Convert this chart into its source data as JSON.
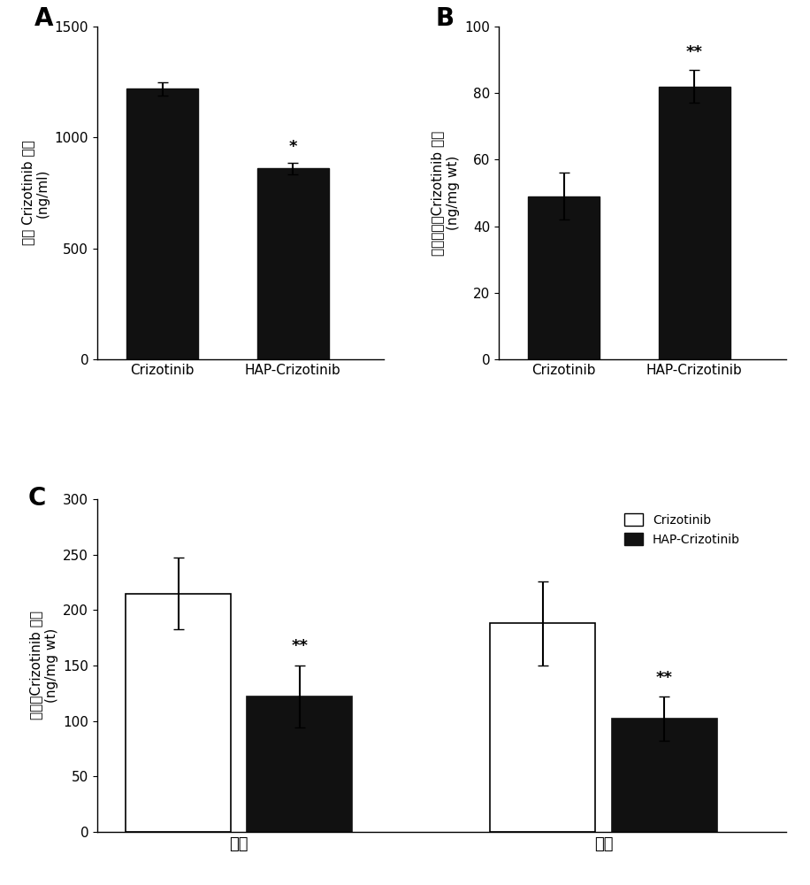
{
  "panel_A": {
    "label": "A",
    "categories": [
      "Crizotinib",
      "HAP-Crizotinib"
    ],
    "values": [
      1220,
      860
    ],
    "errors": [
      30,
      25
    ],
    "bar_color": "#111111",
    "ylabel_line1": "血浆 Crizotinib 浓度",
    "ylabel_line2": "(ng/ml)",
    "ylim": [
      0,
      1500
    ],
    "yticks": [
      0,
      500,
      1000,
      1500
    ],
    "significance": [
      "",
      "*"
    ]
  },
  "panel_B": {
    "label": "B",
    "categories": [
      "Crizotinib",
      "HAP-Crizotinib"
    ],
    "values": [
      49,
      82
    ],
    "errors": [
      7,
      5
    ],
    "bar_color": "#111111",
    "ylabel_line1": "肿瘤组织内Crizotinib 水平",
    "ylabel_line2": "(ng/mg wt)",
    "ylim": [
      0,
      100
    ],
    "yticks": [
      0,
      20,
      40,
      60,
      80,
      100
    ],
    "significance": [
      "",
      "**"
    ]
  },
  "panel_C": {
    "label": "C",
    "group_labels": [
      "肝脏",
      "小肠"
    ],
    "categories": [
      "Crizotinib",
      "HAP-Crizotinib"
    ],
    "values_group1": [
      215,
      122
    ],
    "errors_group1": [
      32,
      28
    ],
    "values_group2": [
      188,
      102
    ],
    "errors_group2": [
      38,
      20
    ],
    "bar_colors": [
      "white",
      "#111111"
    ],
    "bar_edge_colors": [
      "black",
      "#111111"
    ],
    "ylabel_line1": "组织内Crizotinib 水平",
    "ylabel_line2": "(ng/mg wt)",
    "ylim": [
      0,
      300
    ],
    "yticks": [
      0,
      50,
      100,
      150,
      200,
      250,
      300
    ],
    "significance_group1": [
      "",
      "**"
    ],
    "significance_group2": [
      "",
      "**"
    ],
    "legend_labels": [
      "Crizotinib",
      "HAP-Crizotinib"
    ]
  },
  "background_color": "#ffffff",
  "sig_fontsize": 13,
  "panel_label_fontsize": 20,
  "tick_fontsize": 11,
  "axis_label_fontsize": 11,
  "chinese_fontsize": 11,
  "xticklabel_fontsize": 11,
  "group_label_fontsize": 13
}
